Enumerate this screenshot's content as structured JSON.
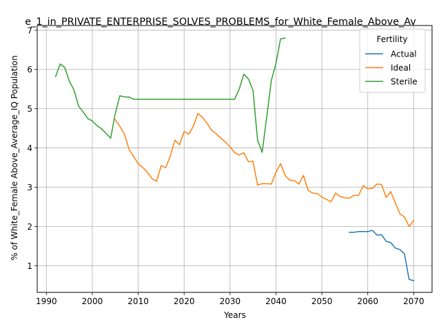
{
  "chart_data": {
    "type": "line",
    "title": "e_1_in_PRIVATE_ENTERPRISE_SOLVES_PROBLEMS_for_White_Female_Above_Av",
    "xlabel": "Years",
    "ylabel": "% of White_Female Above_Average_IQ Population",
    "xlim": [
      1988,
      2074
    ],
    "ylim": [
      0.32,
      7.12
    ],
    "x_ticks": [
      1990,
      2000,
      2010,
      2020,
      2030,
      2040,
      2050,
      2060,
      2070
    ],
    "y_ticks": [
      1,
      2,
      3,
      4,
      5,
      6,
      7
    ],
    "grid": true,
    "legend": {
      "title": "Fertility",
      "position": "top-right"
    },
    "series": [
      {
        "name": "Actual",
        "color": "#1f77b4",
        "points": [
          [
            2056,
            1.85
          ],
          [
            2057,
            1.85
          ],
          [
            2058,
            1.87
          ],
          [
            2059,
            1.87
          ],
          [
            2060,
            1.87
          ],
          [
            2061,
            1.9
          ],
          [
            2062,
            1.78
          ],
          [
            2063,
            1.79
          ],
          [
            2064,
            1.62
          ],
          [
            2065,
            1.59
          ],
          [
            2066,
            1.45
          ],
          [
            2067,
            1.41
          ],
          [
            2068,
            1.3
          ],
          [
            2069,
            0.65
          ],
          [
            2070,
            0.62
          ]
        ]
      },
      {
        "name": "Ideal",
        "color": "#ff7f0e",
        "points": [
          [
            2005,
            4.72
          ],
          [
            2006,
            4.55
          ],
          [
            2007,
            4.35
          ],
          [
            2008,
            3.97
          ],
          [
            2009,
            3.78
          ],
          [
            2010,
            3.6
          ],
          [
            2011,
            3.5
          ],
          [
            2012,
            3.38
          ],
          [
            2013,
            3.22
          ],
          [
            2014,
            3.15
          ],
          [
            2015,
            3.55
          ],
          [
            2016,
            3.5
          ],
          [
            2017,
            3.8
          ],
          [
            2018,
            4.2
          ],
          [
            2019,
            4.08
          ],
          [
            2020,
            4.42
          ],
          [
            2021,
            4.35
          ],
          [
            2022,
            4.55
          ],
          [
            2023,
            4.88
          ],
          [
            2024,
            4.78
          ],
          [
            2025,
            4.63
          ],
          [
            2026,
            4.45
          ],
          [
            2027,
            4.36
          ],
          [
            2028,
            4.25
          ],
          [
            2029,
            4.15
          ],
          [
            2030,
            4.03
          ],
          [
            2031,
            3.88
          ],
          [
            2032,
            3.82
          ],
          [
            2033,
            3.88
          ],
          [
            2034,
            3.65
          ],
          [
            2035,
            3.66
          ],
          [
            2036,
            3.05
          ],
          [
            2037,
            3.09
          ],
          [
            2038,
            3.09
          ],
          [
            2039,
            3.08
          ],
          [
            2040,
            3.38
          ],
          [
            2041,
            3.6
          ],
          [
            2042,
            3.3
          ],
          [
            2043,
            3.18
          ],
          [
            2044,
            3.17
          ],
          [
            2045,
            3.08
          ],
          [
            2046,
            3.3
          ],
          [
            2047,
            2.92
          ],
          [
            2048,
            2.85
          ],
          [
            2049,
            2.84
          ],
          [
            2050,
            2.75
          ],
          [
            2051,
            2.69
          ],
          [
            2052,
            2.63
          ],
          [
            2053,
            2.85
          ],
          [
            2054,
            2.76
          ],
          [
            2055,
            2.73
          ],
          [
            2056,
            2.72
          ],
          [
            2057,
            2.79
          ],
          [
            2058,
            2.79
          ],
          [
            2059,
            3.04
          ],
          [
            2060,
            2.96
          ],
          [
            2061,
            2.97
          ],
          [
            2062,
            3.08
          ],
          [
            2063,
            3.07
          ],
          [
            2064,
            2.74
          ],
          [
            2065,
            2.89
          ],
          [
            2066,
            2.6
          ],
          [
            2067,
            2.32
          ],
          [
            2068,
            2.24
          ],
          [
            2069,
            2.0
          ],
          [
            2070,
            2.15
          ]
        ]
      },
      {
        "name": "Sterile",
        "color": "#2ca02c",
        "points": [
          [
            1992,
            5.82
          ],
          [
            1993,
            6.14
          ],
          [
            1994,
            6.05
          ],
          [
            1995,
            5.7
          ],
          [
            1996,
            5.48
          ],
          [
            1997,
            5.07
          ],
          [
            1998,
            4.92
          ],
          [
            1999,
            4.75
          ],
          [
            2000,
            4.69
          ],
          [
            2001,
            4.57
          ],
          [
            2002,
            4.49
          ],
          [
            2003,
            4.37
          ],
          [
            2004,
            4.25
          ],
          [
            2005,
            4.88
          ],
          [
            2006,
            5.33
          ],
          [
            2007,
            5.3
          ],
          [
            2008,
            5.3
          ],
          [
            2009,
            5.24
          ],
          [
            2010,
            5.24
          ],
          [
            2012,
            5.24
          ],
          [
            2014,
            5.24
          ],
          [
            2016,
            5.24
          ],
          [
            2018,
            5.24
          ],
          [
            2020,
            5.24
          ],
          [
            2022,
            5.24
          ],
          [
            2024,
            5.24
          ],
          [
            2026,
            5.24
          ],
          [
            2028,
            5.24
          ],
          [
            2030,
            5.24
          ],
          [
            2031,
            5.24
          ],
          [
            2032,
            5.5
          ],
          [
            2033,
            5.88
          ],
          [
            2034,
            5.76
          ],
          [
            2035,
            5.47
          ],
          [
            2036,
            4.2
          ],
          [
            2037,
            3.89
          ],
          [
            2038,
            4.8
          ],
          [
            2039,
            5.72
          ],
          [
            2040,
            6.15
          ],
          [
            2041,
            6.78
          ],
          [
            2042,
            6.8
          ]
        ]
      }
    ]
  }
}
